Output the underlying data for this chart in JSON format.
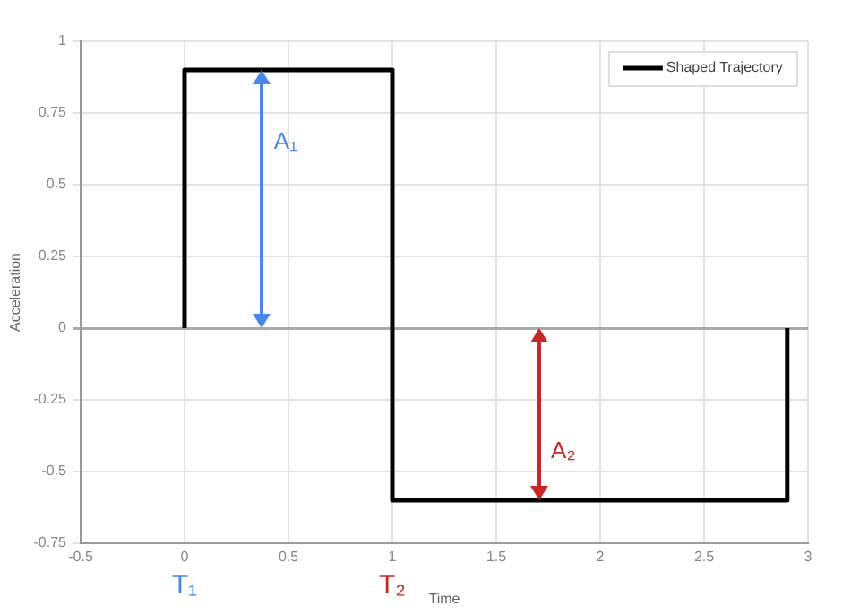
{
  "chart_data": {
    "type": "line",
    "xlabel": "Time",
    "ylabel": "Acceleration",
    "x": [
      0,
      0,
      1,
      1,
      2.9,
      2.9
    ],
    "series": [
      {
        "name": "Shaped Trajectory",
        "color": "#000000",
        "values": [
          0,
          0.9,
          0.9,
          -0.6,
          -0.6,
          0
        ]
      }
    ],
    "xlim": [
      -0.5,
      3
    ],
    "xticks": [
      -0.5,
      0,
      0.5,
      1,
      1.5,
      2,
      2.5,
      3
    ],
    "ylim": [
      -0.75,
      1
    ],
    "yticks": [
      -0.75,
      -0.5,
      -0.25,
      0,
      0.25,
      0.5,
      0.75,
      1
    ],
    "grid": true,
    "legend": "top right",
    "marker": "none",
    "line_style": "solid",
    "annotations": [
      "A₁",
      "A₂",
      "T₁",
      "T₂"
    ]
  }
}
